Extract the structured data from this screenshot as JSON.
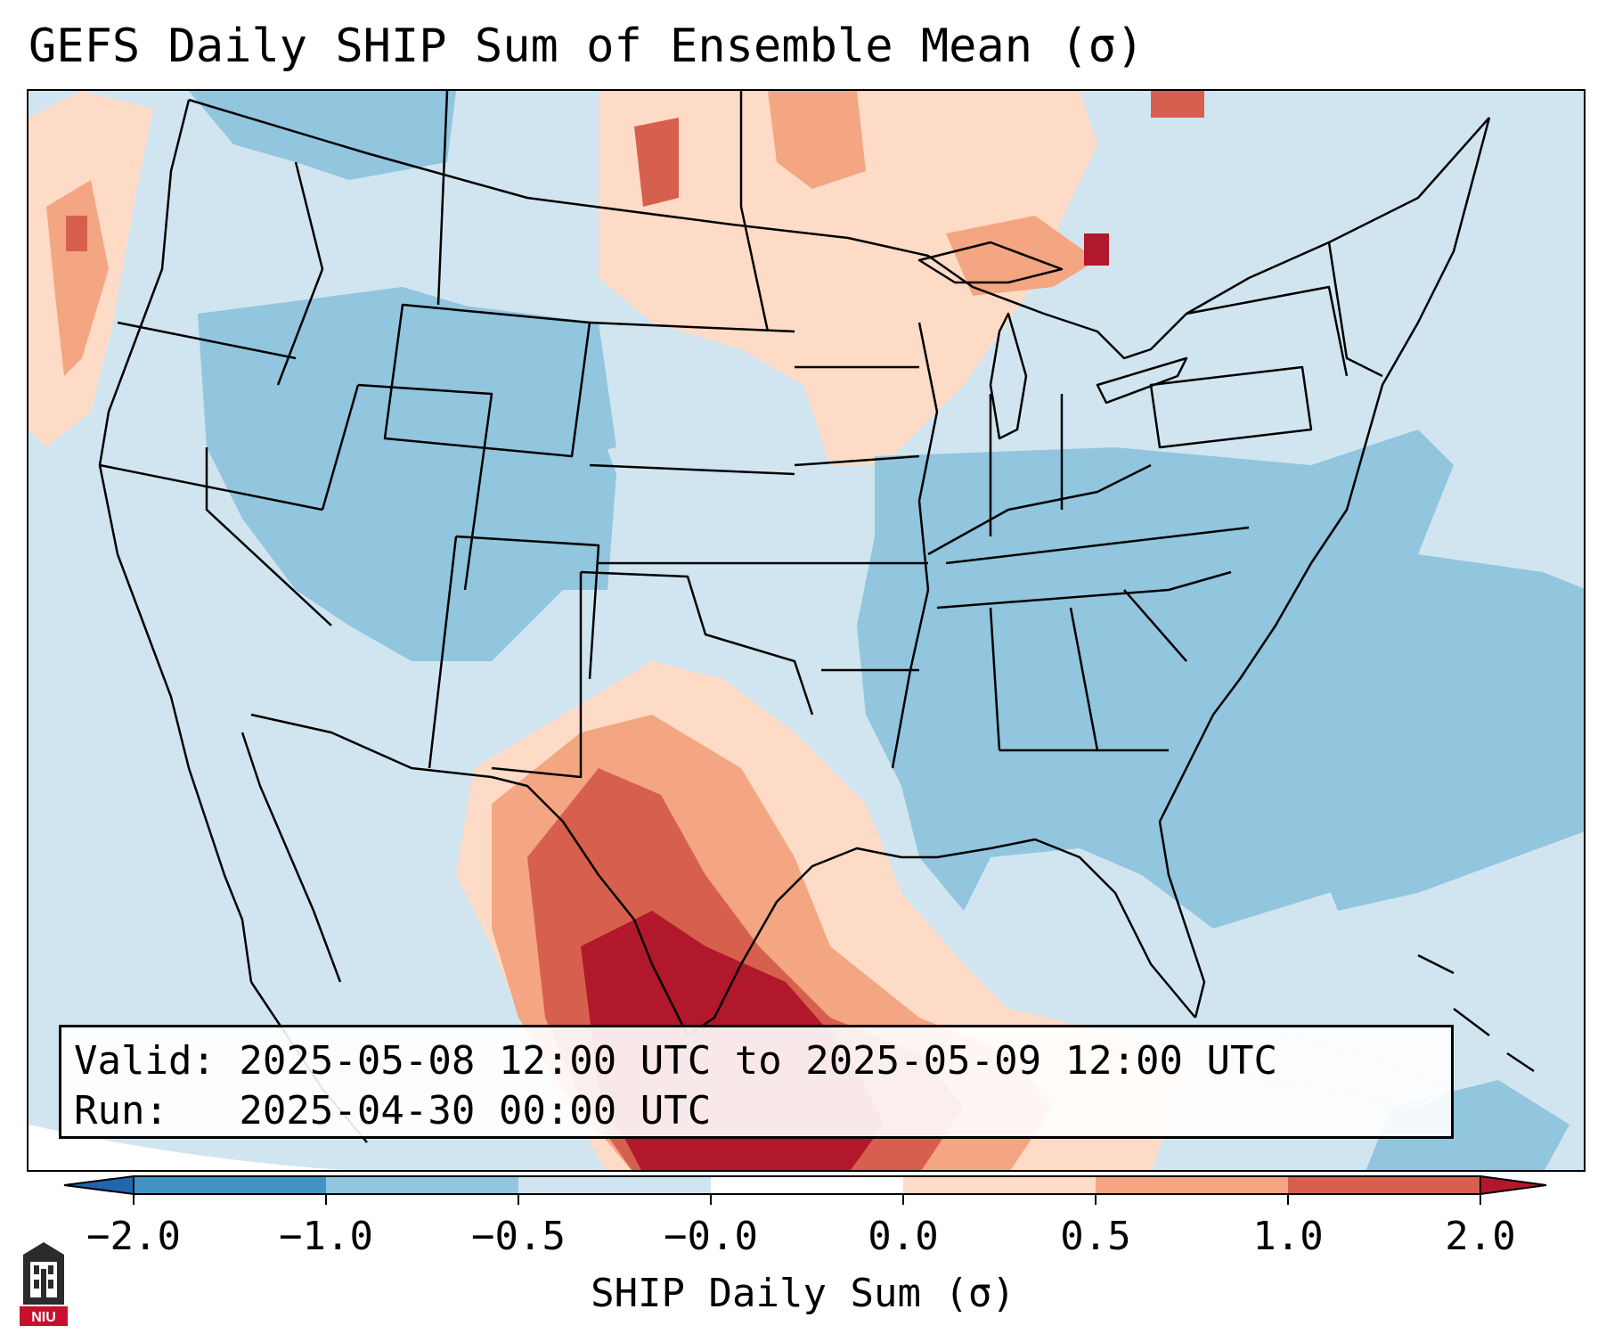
{
  "title": "GEFS Daily SHIP Sum of Ensemble Mean (σ)",
  "info": {
    "valid_line": "Valid: 2025-05-08 12:00 UTC to 2025-05-09 12:00 UTC",
    "run_line": "Run:   2025-04-30 00:00 UTC"
  },
  "colorbar": {
    "label": "SHIP Daily Sum (σ)",
    "ticks": [
      "−2.0",
      "−1.0",
      "−0.5",
      "−0.0",
      "0.0",
      "0.5",
      "1.0",
      "2.0"
    ],
    "colors": {
      "below": "#2166ac",
      "bin_1": "#4393c3",
      "bin_2": "#92c5de",
      "bin_3": "#d1e5f0",
      "bin_4": "#ffffff",
      "bin_5": "#fddbc7",
      "bin_6": "#f4a582",
      "bin_7": "#d6604d",
      "above": "#b2182b"
    }
  },
  "logo": {
    "text": "NIU",
    "icon": "niu-logo-icon",
    "color": "#c8102e"
  }
}
